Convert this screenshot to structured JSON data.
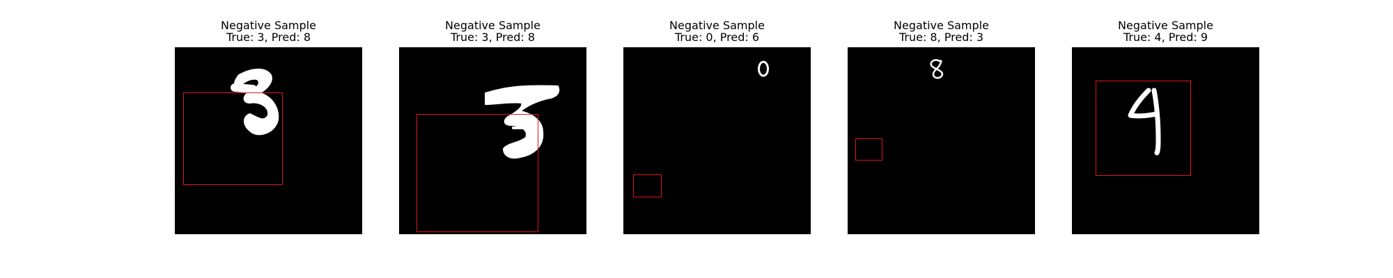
{
  "figure": {
    "box_color": "#e8141c",
    "panels": [
      {
        "title": "Negative Sample",
        "subtitle": "True: 3, Pred: 8",
        "true_label": 3,
        "pred_label": 8,
        "digit_shown": "3"
      },
      {
        "title": "Negative Sample",
        "subtitle": "True: 3, Pred: 8",
        "true_label": 3,
        "pred_label": 8,
        "digit_shown": "3"
      },
      {
        "title": "Negative Sample",
        "subtitle": "True: 0, Pred: 6",
        "true_label": 0,
        "pred_label": 6,
        "digit_shown": "0"
      },
      {
        "title": "Negative Sample",
        "subtitle": "True: 8, Pred: 3",
        "true_label": 8,
        "pred_label": 3,
        "digit_shown": "8"
      },
      {
        "title": "Negative Sample",
        "subtitle": "True: 4, Pred: 9",
        "true_label": 4,
        "pred_label": 9,
        "digit_shown": "4"
      }
    ]
  }
}
